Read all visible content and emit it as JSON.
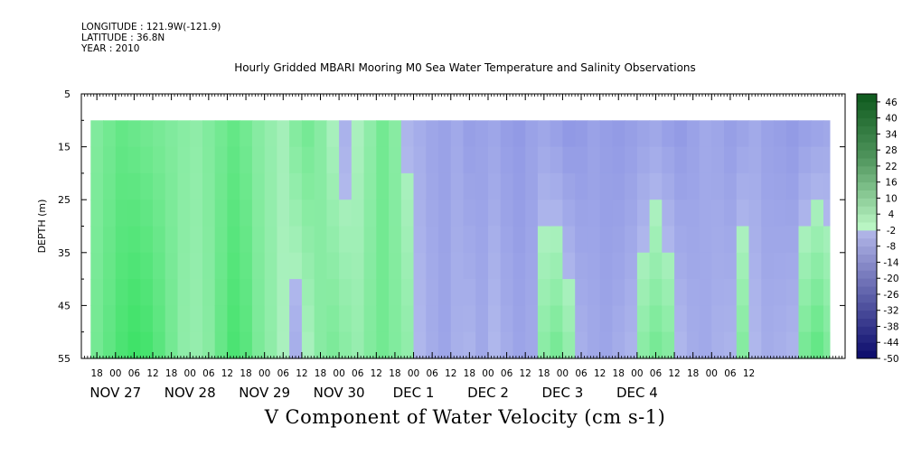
{
  "header": {
    "longitude": "LONGITUDE : 121.9W(-121.9)",
    "latitude": "LATITUDE : 36.8N",
    "year": "YEAR : 2010",
    "title": "Hourly Gridded MBARI Mooring M0 Sea Water Temperature and Salinity Observations"
  },
  "chart_data": {
    "type": "heatmap",
    "title": "Hourly Gridded MBARI Mooring M0 Sea Water Temperature and Salinity Observations",
    "xlabel": "V Component of Water Velocity (cm s-1)",
    "ylabel": "DEPTH (m)",
    "ylim": [
      55,
      5
    ],
    "y_ticks": [
      "5",
      "15",
      "25",
      "35",
      "45",
      "55"
    ],
    "x_hour_ticks": [
      "18",
      "00",
      "06",
      "12",
      "18",
      "00",
      "06",
      "12",
      "18",
      "00",
      "06",
      "12",
      "18",
      "00",
      "06",
      "12",
      "18",
      "00",
      "06",
      "12",
      "18",
      "00",
      "06",
      "12",
      "18",
      "00",
      "06",
      "12",
      "18",
      "00",
      "06",
      "12",
      "18",
      "00",
      "06",
      "12"
    ],
    "x_day_labels": [
      "NOV 27",
      "NOV 28",
      "NOV 29",
      "NOV 30",
      "DEC  1",
      "DEC  2",
      "DEC  3",
      "DEC  4"
    ],
    "colorbar_labels": [
      "46",
      "40",
      "34",
      "28",
      "22",
      "16",
      "10",
      "4",
      "-2",
      "-8",
      "-14",
      "-20",
      "-26",
      "-32",
      "-38",
      "-44",
      "-50"
    ],
    "colorbar_range": [
      -50,
      49
    ],
    "data_depth_range": [
      10,
      55
    ],
    "time_range_hours_from_nov27_00": [
      -8,
      229
    ],
    "velocity_profile": {
      "hours_from_nov27_00": [
        -8,
        -4,
        0,
        4,
        8,
        12,
        16,
        20,
        24,
        28,
        32,
        36,
        40,
        44,
        48,
        52,
        56,
        60,
        64,
        68,
        72,
        76,
        80,
        84,
        88,
        92,
        96,
        100,
        104,
        108,
        112,
        116,
        120,
        124,
        128,
        132,
        136,
        140,
        144,
        148,
        152,
        156,
        160,
        164,
        168,
        172,
        176,
        180,
        184,
        188,
        192,
        196,
        200,
        204,
        208,
        212,
        216,
        220,
        224,
        228
      ],
      "surface_v": [
        4,
        6,
        8,
        7,
        6,
        5,
        4,
        3,
        2,
        4,
        6,
        8,
        6,
        3,
        1,
        -1,
        4,
        6,
        3,
        -2,
        -4,
        -2,
        2,
        6,
        3,
        -3,
        -5,
        -7,
        -8,
        -6,
        -9,
        -8,
        -7,
        -9,
        -10,
        -8,
        -7,
        -9,
        -11,
        -10,
        -8,
        -9,
        -10,
        -9,
        -8,
        -7,
        -9,
        -10,
        -8,
        -6,
        -7,
        -9,
        -8,
        -6,
        -8,
        -9,
        -10,
        -9,
        -8,
        -7
      ],
      "bottom_v": [
        6,
        9,
        12,
        14,
        13,
        10,
        6,
        2,
        1,
        3,
        8,
        12,
        10,
        5,
        2,
        -2,
        -5,
        -2,
        3,
        5,
        3,
        1,
        4,
        6,
        4,
        2,
        -2,
        -5,
        -7,
        -4,
        -3,
        -6,
        -2,
        -5,
        -7,
        -6,
        3,
        6,
        2,
        -4,
        -6,
        -7,
        -5,
        -3,
        3,
        6,
        4,
        -2,
        -5,
        -6,
        -4,
        -3,
        4,
        -2,
        -5,
        -4,
        -3,
        6,
        9,
        5
      ]
    }
  }
}
